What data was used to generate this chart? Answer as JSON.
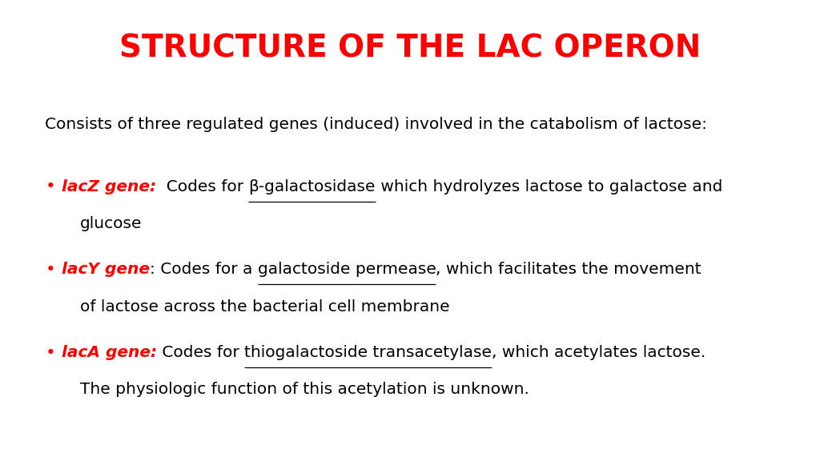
{
  "title": "STRUCTURE OF THE LAC OPERON",
  "title_color": "#FF0000",
  "title_fontsize": 28,
  "background_color": "#FFFFFF",
  "text_color": "#000000",
  "red_color": "#FF0000",
  "intro_text": "Consists of three regulated genes (induced) involved in the catabolism of lactose:",
  "body_fontsize": 14.5,
  "fontfamily": "DejaVu Sans",
  "bullets": [
    {
      "label": "lacZ gene:",
      "label_italic": true,
      "after_label": "  Codes for ",
      "underline_text": "β-galactosidase",
      "after_underline": " which hydrolyzes lactose to galactose and",
      "line2": "glucose"
    },
    {
      "label": "lacY gene",
      "label_italic": true,
      "after_label": ": Codes for a ",
      "underline_text": "galactoside permease",
      "after_underline": ", which facilitates the movement",
      "line2": "of lactose across the bacterial cell membrane"
    },
    {
      "label": "lacA gene:",
      "label_italic": true,
      "after_label": " Codes for ",
      "underline_text": "thiogalactoside transacetylase",
      "after_underline": ", which acetylates lactose.",
      "line2": "The physiologic function of this acetylation is unknown."
    }
  ]
}
